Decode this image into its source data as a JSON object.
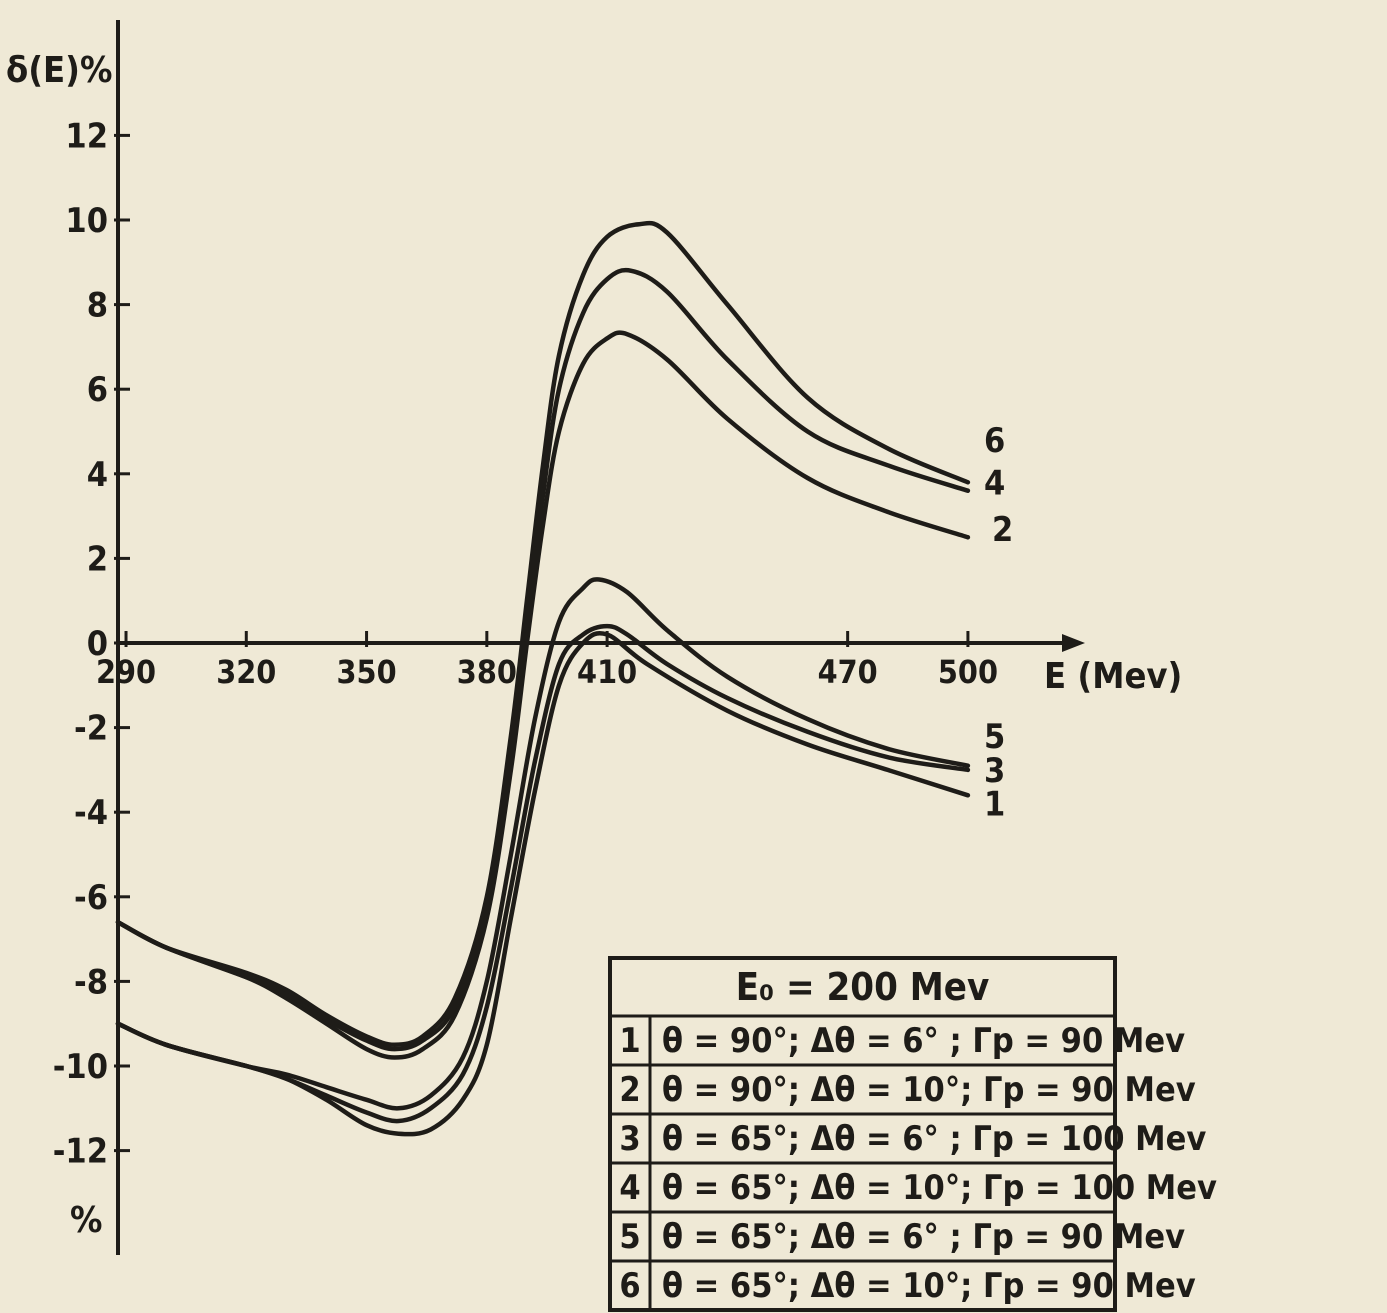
{
  "chart_data": {
    "type": "line",
    "ylabel": "δ(E)%",
    "ylabel_bottom": "%",
    "xlabel": "E (Mev)",
    "xlim": [
      288,
      508
    ],
    "ylim": [
      -14.5,
      14.5
    ],
    "yticks": [
      12,
      10,
      8,
      6,
      4,
      2,
      0,
      -2,
      -4,
      -6,
      -8,
      -10,
      -12
    ],
    "xtick_labels": [
      {
        "value": 290,
        "label": "290"
      },
      {
        "value": 320,
        "label": "320"
      },
      {
        "value": 350,
        "label": "350"
      },
      {
        "value": 380,
        "label": "380"
      },
      {
        "value": 410,
        "label": "410"
      },
      {
        "value": 470,
        "label": "470"
      },
      {
        "value": 500,
        "label": "500"
      }
    ],
    "grid": false,
    "series": [
      {
        "name": "1",
        "points": [
          [
            288,
            -9.0
          ],
          [
            300,
            -9.5
          ],
          [
            320,
            -10.0
          ],
          [
            330,
            -10.3
          ],
          [
            340,
            -10.8
          ],
          [
            350,
            -11.4
          ],
          [
            358,
            -11.6
          ],
          [
            366,
            -11.5
          ],
          [
            374,
            -10.8
          ],
          [
            380,
            -9.5
          ],
          [
            386,
            -6.5
          ],
          [
            392,
            -3.5
          ],
          [
            398,
            -1.0
          ],
          [
            404,
            0.0
          ],
          [
            410,
            0.2
          ],
          [
            420,
            -0.5
          ],
          [
            440,
            -1.6
          ],
          [
            460,
            -2.4
          ],
          [
            480,
            -3.0
          ],
          [
            500,
            -3.6
          ]
        ]
      },
      {
        "name": "2",
        "points": [
          [
            288,
            -6.6
          ],
          [
            300,
            -7.2
          ],
          [
            320,
            -7.9
          ],
          [
            330,
            -8.4
          ],
          [
            340,
            -9.0
          ],
          [
            350,
            -9.6
          ],
          [
            357,
            -9.8
          ],
          [
            364,
            -9.6
          ],
          [
            372,
            -8.8
          ],
          [
            380,
            -6.5
          ],
          [
            386,
            -3.0
          ],
          [
            390,
            0.0
          ],
          [
            394,
            2.8
          ],
          [
            398,
            5.0
          ],
          [
            404,
            6.6
          ],
          [
            410,
            7.2
          ],
          [
            415,
            7.3
          ],
          [
            425,
            6.7
          ],
          [
            440,
            5.3
          ],
          [
            460,
            3.9
          ],
          [
            480,
            3.1
          ],
          [
            500,
            2.5
          ]
        ]
      },
      {
        "name": "3",
        "points": [
          [
            288,
            -9.0
          ],
          [
            300,
            -9.5
          ],
          [
            320,
            -10.0
          ],
          [
            330,
            -10.3
          ],
          [
            340,
            -10.7
          ],
          [
            350,
            -11.1
          ],
          [
            358,
            -11.3
          ],
          [
            366,
            -11.0
          ],
          [
            374,
            -10.2
          ],
          [
            380,
            -8.6
          ],
          [
            386,
            -5.8
          ],
          [
            392,
            -2.8
          ],
          [
            398,
            -0.5
          ],
          [
            404,
            0.2
          ],
          [
            410,
            0.4
          ],
          [
            415,
            0.2
          ],
          [
            425,
            -0.5
          ],
          [
            440,
            -1.3
          ],
          [
            460,
            -2.1
          ],
          [
            480,
            -2.7
          ],
          [
            500,
            -3.0
          ]
        ]
      },
      {
        "name": "4",
        "points": [
          [
            288,
            -6.6
          ],
          [
            300,
            -7.2
          ],
          [
            320,
            -7.9
          ],
          [
            330,
            -8.3
          ],
          [
            340,
            -8.9
          ],
          [
            350,
            -9.4
          ],
          [
            357,
            -9.6
          ],
          [
            364,
            -9.4
          ],
          [
            372,
            -8.6
          ],
          [
            380,
            -6.3
          ],
          [
            386,
            -2.6
          ],
          [
            390,
            0.5
          ],
          [
            394,
            3.5
          ],
          [
            398,
            6.0
          ],
          [
            404,
            7.8
          ],
          [
            410,
            8.6
          ],
          [
            416,
            8.8
          ],
          [
            425,
            8.3
          ],
          [
            440,
            6.7
          ],
          [
            460,
            5.0
          ],
          [
            480,
            4.2
          ],
          [
            500,
            3.6
          ]
        ]
      },
      {
        "name": "5",
        "points": [
          [
            288,
            -9.0
          ],
          [
            300,
            -9.5
          ],
          [
            320,
            -10.0
          ],
          [
            330,
            -10.2
          ],
          [
            340,
            -10.5
          ],
          [
            350,
            -10.8
          ],
          [
            358,
            -11.0
          ],
          [
            366,
            -10.7
          ],
          [
            374,
            -9.8
          ],
          [
            380,
            -8.0
          ],
          [
            386,
            -5.0
          ],
          [
            392,
            -1.8
          ],
          [
            398,
            0.5
          ],
          [
            404,
            1.3
          ],
          [
            408,
            1.5
          ],
          [
            415,
            1.2
          ],
          [
            425,
            0.3
          ],
          [
            440,
            -0.8
          ],
          [
            460,
            -1.8
          ],
          [
            480,
            -2.5
          ],
          [
            500,
            -2.9
          ]
        ]
      },
      {
        "name": "6",
        "points": [
          [
            288,
            -6.6
          ],
          [
            300,
            -7.2
          ],
          [
            320,
            -7.8
          ],
          [
            330,
            -8.2
          ],
          [
            340,
            -8.8
          ],
          [
            350,
            -9.3
          ],
          [
            357,
            -9.5
          ],
          [
            364,
            -9.3
          ],
          [
            372,
            -8.4
          ],
          [
            380,
            -6.0
          ],
          [
            386,
            -2.2
          ],
          [
            390,
            1.0
          ],
          [
            394,
            4.2
          ],
          [
            398,
            6.8
          ],
          [
            404,
            8.7
          ],
          [
            410,
            9.6
          ],
          [
            418,
            9.9
          ],
          [
            425,
            9.7
          ],
          [
            440,
            8.0
          ],
          [
            460,
            5.8
          ],
          [
            480,
            4.6
          ],
          [
            500,
            3.8
          ]
        ]
      }
    ],
    "curve_labels": [
      {
        "text": "6",
        "x": 504,
        "y": 4.8
      },
      {
        "text": "4",
        "x": 504,
        "y": 3.8
      },
      {
        "text": "2",
        "x": 506,
        "y": 2.7
      },
      {
        "text": "5",
        "x": 504,
        "y": -2.2
      },
      {
        "text": "3",
        "x": 504,
        "y": -3.0
      },
      {
        "text": "1",
        "x": 504,
        "y": -3.8
      }
    ],
    "legend": {
      "title": "E₀ = 200 Mev",
      "rows": [
        {
          "num": "1",
          "text": "θ = 90°; Δθ = 6° ; Γp = 90 Mev"
        },
        {
          "num": "2",
          "text": "θ = 90°; Δθ = 10°; Γp = 90 Mev"
        },
        {
          "num": "3",
          "text": "θ = 65°; Δθ = 6° ; Γp = 100 Mev"
        },
        {
          "num": "4",
          "text": "θ = 65°; Δθ = 10°; Γp = 100 Mev"
        },
        {
          "num": "5",
          "text": "θ = 65°; Δθ = 6° ; Γp = 90 Mev"
        },
        {
          "num": "6",
          "text": "θ = 65°; Δθ = 10°; Γp = 90 Mev"
        }
      ],
      "position": "bottom-right"
    }
  }
}
